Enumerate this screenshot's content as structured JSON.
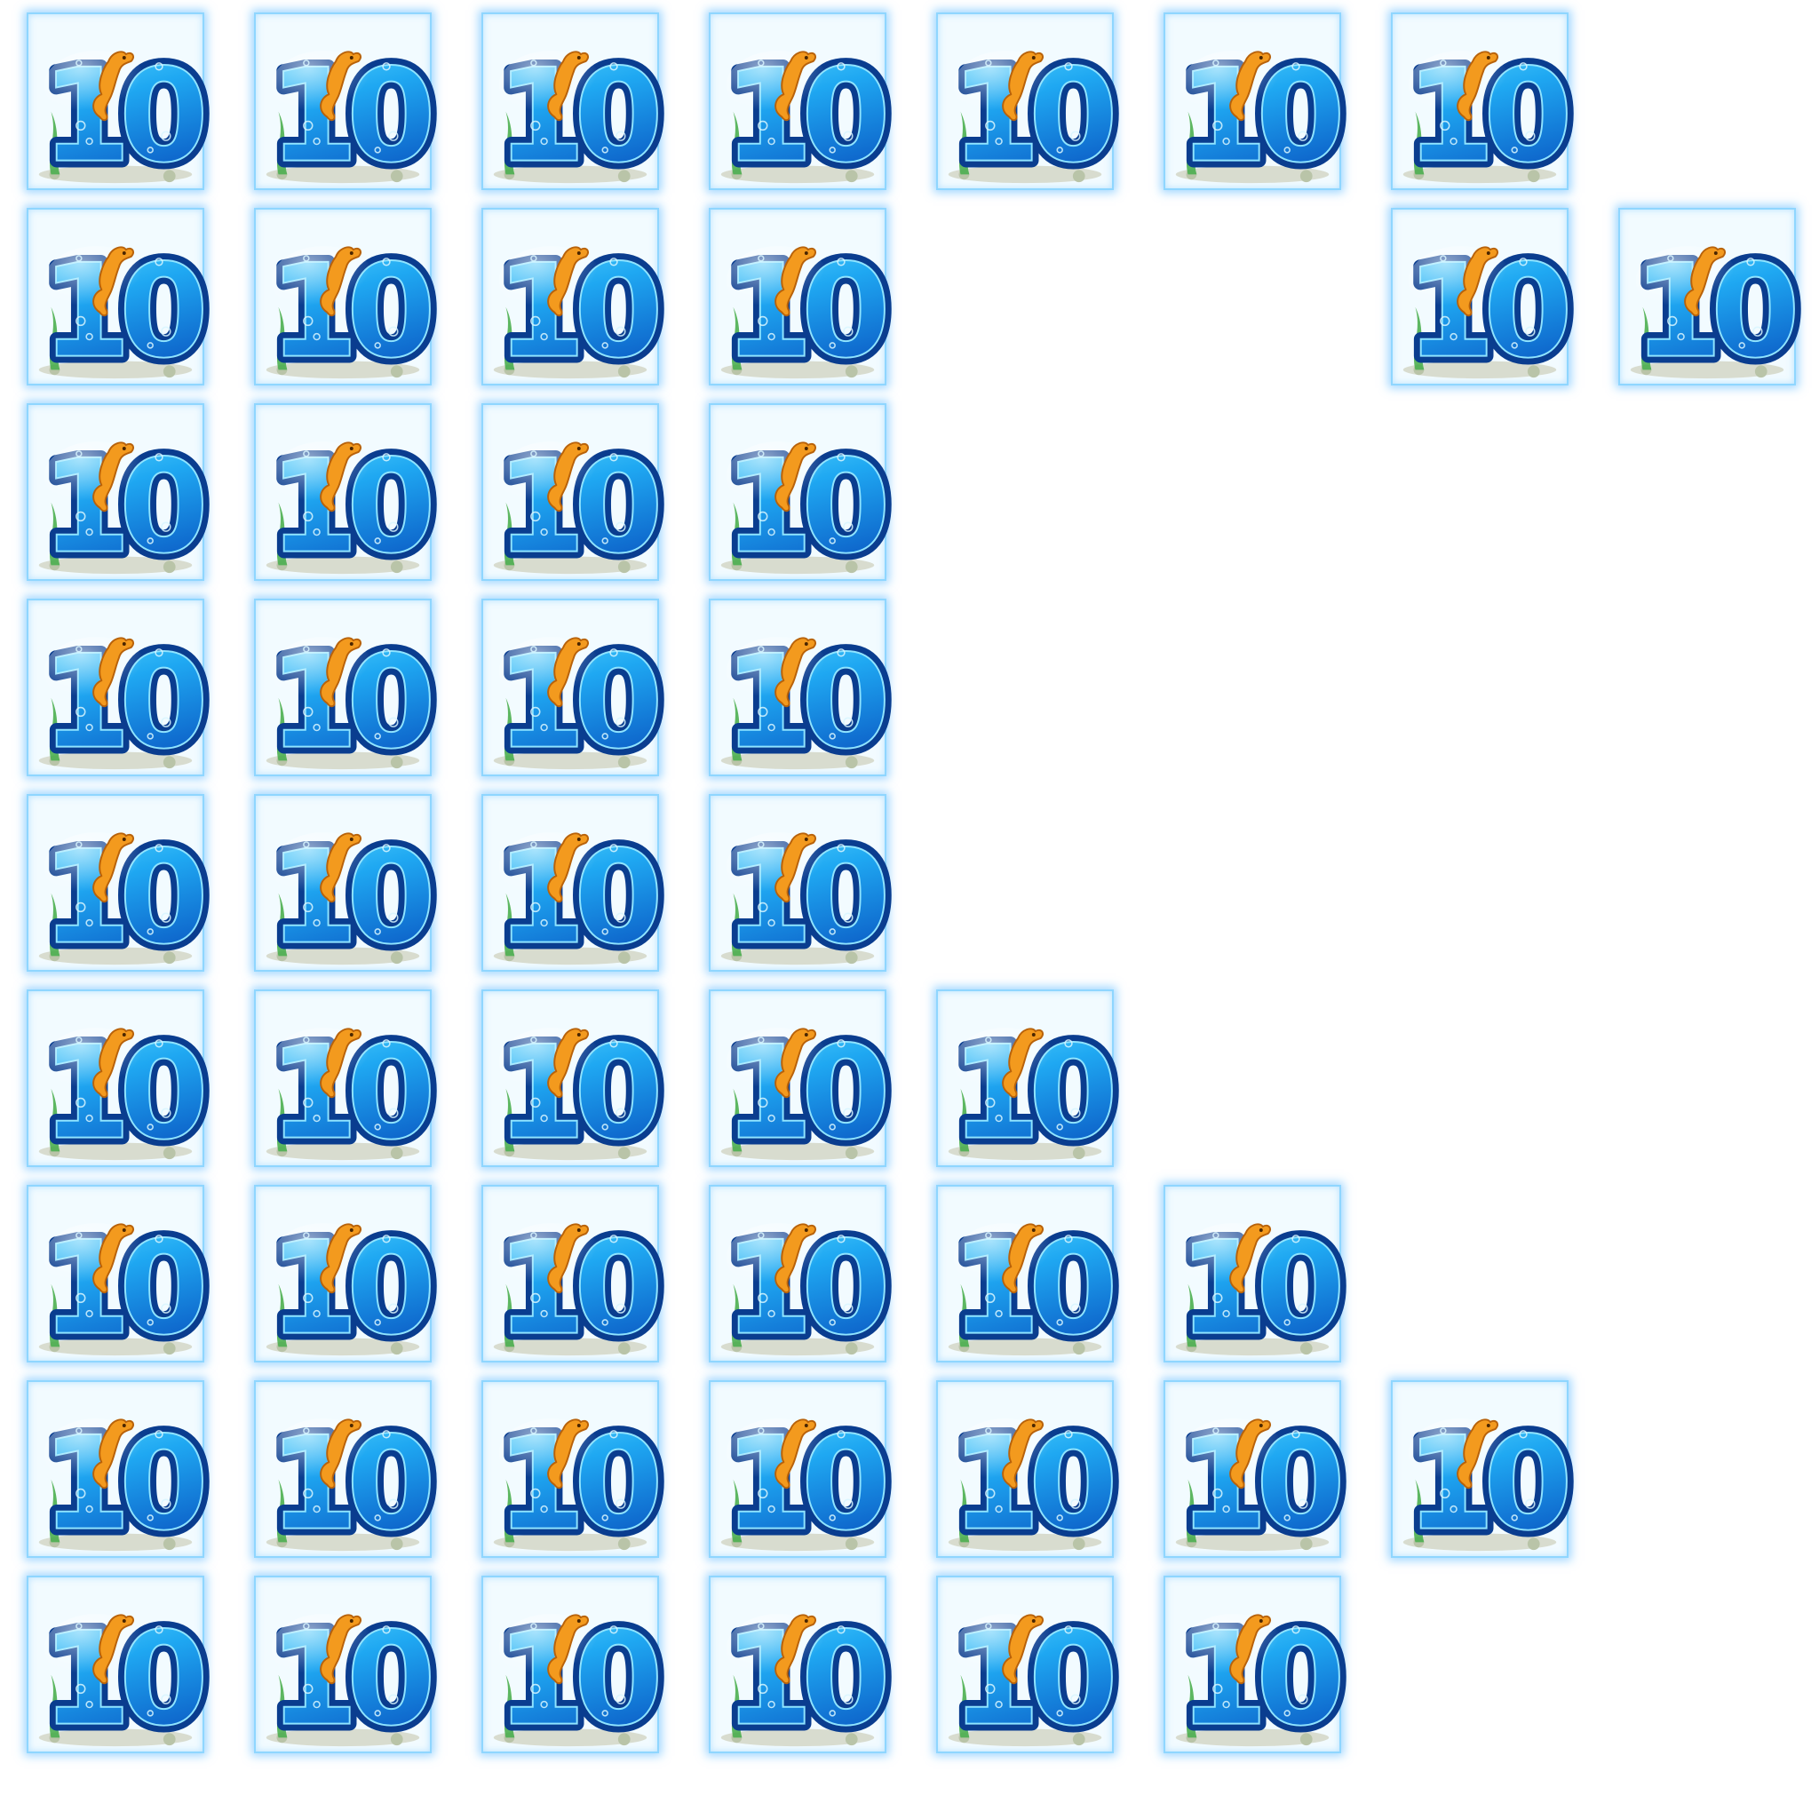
{
  "sprite_sheet": {
    "symbol_label": "10",
    "rows": [
      7,
      6,
      4,
      4,
      4,
      5,
      6,
      7,
      6
    ],
    "colors": {
      "digit_fill_light": "#3fd0ff",
      "digit_fill_mid": "#1a9cf0",
      "digit_fill_dark": "#0b5fc4",
      "digit_outline": "#0a3d8f",
      "tile_border": "#8fd6ff",
      "seahorse": "#f39a1e",
      "seaweed": "#4caf50",
      "sand": "#d8dccf"
    },
    "icons": [
      "seahorse-icon",
      "seaweed-icon",
      "bubble-icon"
    ]
  }
}
